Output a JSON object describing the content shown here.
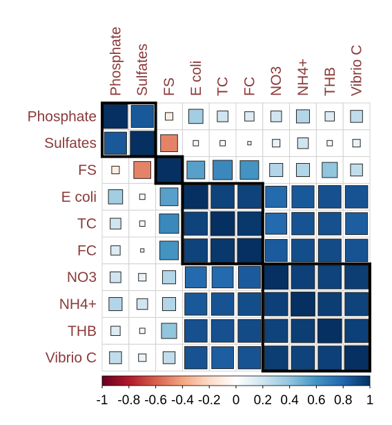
{
  "chart_data": {
    "type": "heatmap",
    "title": "",
    "variables": [
      "Phosphate",
      "Sulfates",
      "FS",
      "E coli",
      "TC",
      "FC",
      "NO3",
      "NH4+",
      "THB",
      "Vibrio C"
    ],
    "matrix": [
      [
        1.0,
        0.85,
        -0.1,
        0.35,
        0.2,
        0.15,
        0.2,
        0.3,
        0.15,
        0.25
      ],
      [
        0.85,
        1.0,
        -0.5,
        0.05,
        0.05,
        0.02,
        0.1,
        0.2,
        0.05,
        0.1
      ],
      [
        -0.1,
        -0.5,
        1.0,
        0.55,
        0.65,
        0.6,
        0.3,
        0.3,
        0.4,
        0.25
      ],
      [
        0.35,
        0.05,
        0.55,
        1.0,
        0.93,
        0.93,
        0.78,
        0.85,
        0.88,
        0.87
      ],
      [
        0.2,
        0.05,
        0.65,
        0.93,
        1.0,
        0.97,
        0.78,
        0.87,
        0.88,
        0.83
      ],
      [
        0.15,
        0.02,
        0.6,
        0.93,
        0.97,
        1.0,
        0.84,
        0.89,
        0.9,
        0.87
      ],
      [
        0.2,
        0.1,
        0.3,
        0.78,
        0.78,
        0.84,
        1.0,
        0.94,
        0.93,
        0.95
      ],
      [
        0.3,
        0.2,
        0.3,
        0.85,
        0.87,
        0.89,
        0.94,
        1.0,
        0.95,
        0.93
      ],
      [
        0.15,
        0.05,
        0.4,
        0.88,
        0.88,
        0.9,
        0.93,
        0.95,
        1.0,
        0.94
      ],
      [
        0.25,
        0.1,
        0.25,
        0.87,
        0.83,
        0.87,
        0.95,
        0.93,
        0.94,
        1.0
      ]
    ],
    "clusters": [
      {
        "members": [
          "Phosphate",
          "Sulfates"
        ]
      },
      {
        "members": [
          "FS"
        ]
      },
      {
        "members": [
          "E coli",
          "TC",
          "FC"
        ]
      },
      {
        "members": [
          "NO3",
          "NH4+",
          "THB",
          "Vibrio C"
        ]
      }
    ],
    "color_scale": {
      "min": -1,
      "max": 1,
      "stops": [
        "#67001f",
        "#b2182b",
        "#d6604d",
        "#f4a582",
        "#fddbc7",
        "#ffffff",
        "#d1e5f0",
        "#92c5de",
        "#4393c3",
        "#2166ac",
        "#053061"
      ],
      "ticks": [
        "-1",
        "-0.8",
        "-0.6",
        "-0.4",
        "-0.2",
        "0",
        "0.2",
        "0.4",
        "0.6",
        "0.8",
        "1"
      ]
    },
    "grid": true,
    "legend_position": "bottom"
  }
}
